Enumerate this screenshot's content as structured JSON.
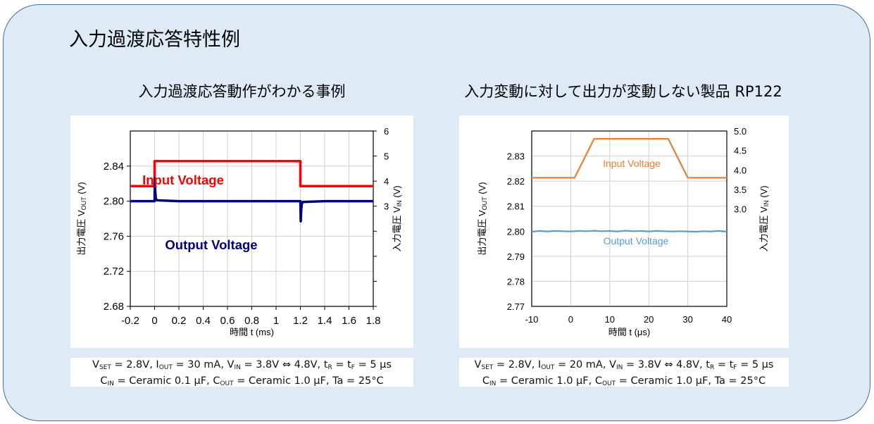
{
  "page": {
    "title": "入力過渡応答特性例"
  },
  "chart_data": [
    {
      "type": "line",
      "title": "入力過渡応答動作がわかる事例",
      "xlabel": "時間 t (ms)",
      "ylabel": "出力電圧 VOUT (V)",
      "ylabel_parts": {
        "main": "出力電圧 V",
        "sub": "OUT",
        "unit": " (V)"
      },
      "y2label": "入力電圧 VIN (V)",
      "y2label_parts": {
        "main": "入力電圧 V",
        "sub": "IN",
        "unit": " (V)"
      },
      "xlim": [
        -0.2,
        1.8
      ],
      "ylim": [
        2.68,
        2.88
      ],
      "y2lim": [
        -1,
        6
      ],
      "xticks": [
        "-0.2",
        "0",
        "0.2",
        "0.4",
        "0.6",
        "0.8",
        "1",
        "1.2",
        "1.4",
        "1.6",
        "1.8"
      ],
      "yticks": [
        "2.68",
        "2.72",
        "2.76",
        "2.80",
        "2.84"
      ],
      "y2ticks": [
        "3",
        "4",
        "5",
        "6"
      ],
      "grid": true,
      "series": [
        {
          "name": "Input Voltage",
          "axis": "right",
          "color": "#ff0000",
          "x": [
            -0.2,
            0.0,
            0.0,
            1.2,
            1.2,
            1.8
          ],
          "y": [
            3.8,
            3.8,
            4.8,
            4.8,
            3.8,
            3.8
          ]
        },
        {
          "name": "Output Voltage",
          "axis": "left",
          "color": "#000080",
          "x": [
            -0.2,
            -0.1,
            0.0,
            0.002,
            0.005,
            0.01,
            0.02,
            0.2,
            0.4,
            0.6,
            0.8,
            1.0,
            1.15,
            1.2,
            1.203,
            1.207,
            1.212,
            1.22,
            1.4,
            1.6,
            1.8
          ],
          "y": [
            2.8,
            2.8,
            2.8,
            2.826,
            2.812,
            2.803,
            2.801,
            2.8,
            2.8,
            2.8,
            2.8,
            2.8,
            2.8,
            2.8,
            2.777,
            2.79,
            2.797,
            2.799,
            2.8,
            2.8,
            2.8
          ]
        }
      ],
      "conditions": {
        "line1": [
          "V",
          "SET",
          " = 2.8V, I",
          "OUT",
          " = 30 mA, V",
          "IN",
          " = 3.8V ⇔ 4.8V, t",
          "R",
          " = t",
          "F",
          " = 5 μs"
        ],
        "line2": [
          "C",
          "IN",
          " = Ceramic 0.1 μF, C",
          "OUT",
          " = Ceramic 1.0 μF, Ta = 25°C"
        ]
      }
    },
    {
      "type": "line",
      "title": "入力変動に対して出力が変動しない製品 RP122",
      "xlabel": "時間 t (μs)",
      "ylabel": "出力電圧 VOUT (V)",
      "ylabel_parts": {
        "main": "出力電圧 V",
        "sub": "OUT",
        "unit": " (V)"
      },
      "y2label": "入力電圧 VIN (V)",
      "y2label_parts": {
        "main": "入力電圧 V",
        "sub": "IN",
        "unit": " (V)"
      },
      "xlim": [
        -10,
        40
      ],
      "ylim": [
        2.77,
        2.84
      ],
      "y2lim": [
        0.5,
        5.0
      ],
      "xticks": [
        "-10",
        "0",
        "10",
        "20",
        "30",
        "40"
      ],
      "yticks": [
        "2.77",
        "2.78",
        "2.79",
        "2.80",
        "2.81",
        "2.82",
        "2.83"
      ],
      "y2ticks": [
        "3.0",
        "3.5",
        "4.0",
        "4.5",
        "5.0"
      ],
      "grid": true,
      "series": [
        {
          "name": "Input Voltage",
          "axis": "right",
          "color": "#ed7d31",
          "x": [
            -10,
            1,
            6,
            25,
            30,
            40
          ],
          "y": [
            3.8,
            3.8,
            4.8,
            4.8,
            3.8,
            3.8
          ]
        },
        {
          "name": "Output Voltage",
          "axis": "left",
          "color": "#5b9bd5",
          "x": [
            -10,
            -8,
            -6,
            -4,
            -2,
            0,
            2,
            4,
            6,
            8,
            10,
            12,
            14,
            16,
            18,
            20,
            22,
            24,
            26,
            28,
            30,
            32,
            34,
            36,
            38,
            40
          ],
          "y": [
            2.7998,
            2.8001,
            2.7999,
            2.8001,
            2.8,
            2.7999,
            2.8001,
            2.8,
            2.8002,
            2.8,
            2.8001,
            2.7999,
            2.8002,
            2.8,
            2.8001,
            2.7999,
            2.8001,
            2.8,
            2.7999,
            2.8,
            2.7999,
            2.7998,
            2.8,
            2.7999,
            2.8001,
            2.7998
          ]
        }
      ],
      "conditions": {
        "line1": [
          "V",
          "SET",
          " = 2.8V, I",
          "OUT",
          " = 20 mA, V",
          "IN",
          " = 3.8V ⇔ 4.8V, t",
          "R",
          " = t",
          "F",
          " = 5 μs"
        ],
        "line2": [
          "C",
          "IN",
          " = Ceramic 1.0 μF, C",
          "OUT",
          " = Ceramic 1.0 μF, Ta = 25°C"
        ]
      }
    }
  ]
}
